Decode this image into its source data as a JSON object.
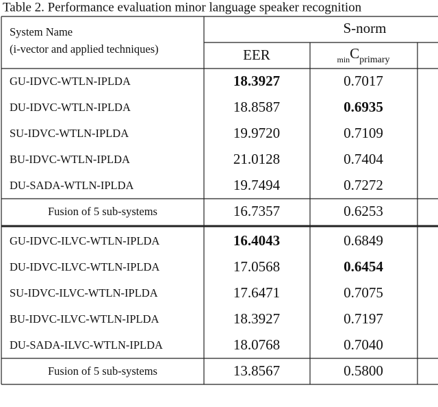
{
  "caption": "Table 2. Performance evaluation minor language speaker recognition",
  "table": {
    "header": {
      "system_name": "System Name",
      "system_sub": "(i-vector and applied techniques)",
      "group": "S-norm",
      "eer": "EER",
      "minc": {
        "pre": "min",
        "main": "C",
        "sub": "primary"
      }
    },
    "blocks": [
      {
        "rows": [
          {
            "name": "GU-IDVC-WTLN-IPLDA",
            "eer": "18.3927",
            "minc": "0.7017",
            "bold": "eer"
          },
          {
            "name": "DU-IDVC-WTLN-IPLDA",
            "eer": "18.8587",
            "minc": "0.6935",
            "bold": "minc"
          },
          {
            "name": "SU-IDVC-WTLN-IPLDA",
            "eer": "19.9720",
            "minc": "0.7109"
          },
          {
            "name": "BU-IDVC-WTLN-IPLDA",
            "eer": "21.0128",
            "minc": "0.7404"
          },
          {
            "name": "DU-SADA-WTLN-IPLDA",
            "eer": "19.7494",
            "minc": "0.7272"
          }
        ],
        "fusion": {
          "name": "Fusion of 5 sub-systems",
          "eer": "16.7357",
          "minc": "0.6253"
        }
      },
      {
        "rows": [
          {
            "name": "GU-IDVC-ILVC-WTLN-IPLDA",
            "eer": "16.4043",
            "minc": "0.6849",
            "bold": "eer"
          },
          {
            "name": "DU-IDVC-ILVC-WTLN-IPLDA",
            "eer": "17.0568",
            "minc": "0.6454",
            "bold": "minc"
          },
          {
            "name": "SU-IDVC-ILVC-WTLN-IPLDA",
            "eer": "17.6471",
            "minc": "0.7075"
          },
          {
            "name": "BU-IDVC-ILVC-WTLN-IPLDA",
            "eer": "18.3927",
            "minc": "0.7197"
          },
          {
            "name": "DU-SADA-ILVC-WTLN-IPLDA",
            "eer": "18.0768",
            "minc": "0.7040"
          }
        ],
        "fusion": {
          "name": "Fusion of 5 sub-systems",
          "eer": "13.8567",
          "minc": "0.5800"
        }
      }
    ]
  }
}
